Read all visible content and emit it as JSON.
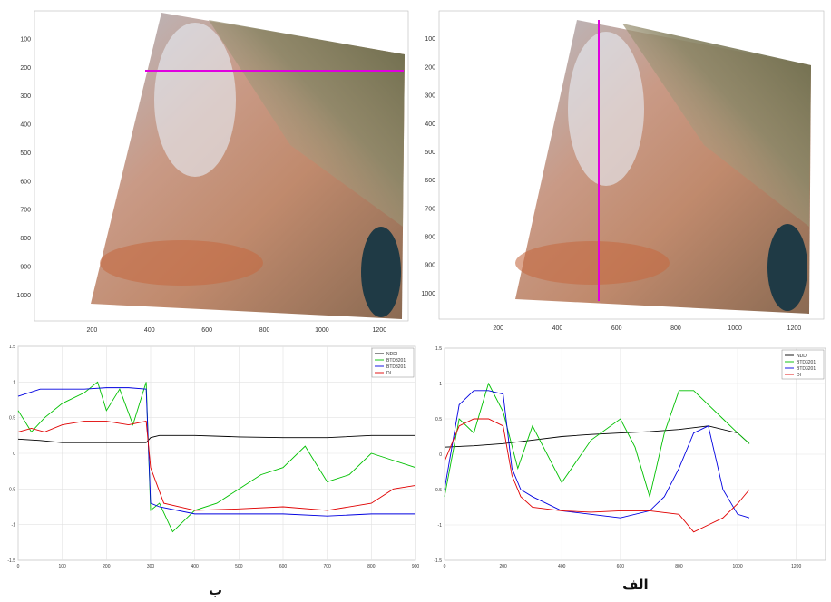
{
  "captions": {
    "right": "الف",
    "left": "ب"
  },
  "colors": {
    "ndd": "#000000",
    "btd2": "#00c000",
    "btd1": "#0000e0",
    "di": "#e00000",
    "profile": "#e000e0"
  },
  "chart_data": [
    {
      "type": "image",
      "panel": "top-left",
      "description": "satellite scene with horizontal profile line",
      "xticks": [
        200,
        400,
        600,
        800,
        1000,
        1200
      ],
      "yticks": [
        100,
        200,
        300,
        400,
        500,
        600,
        700,
        800,
        900,
        1000
      ],
      "xlim": [
        0,
        1300
      ],
      "ylim": [
        0,
        1090
      ],
      "profile_line": {
        "orientation": "horizontal",
        "y": 210,
        "x_range": [
          400,
          1280
        ]
      }
    },
    {
      "type": "image",
      "panel": "top-right",
      "description": "satellite scene with vertical profile line",
      "xticks": [
        200,
        400,
        600,
        800,
        1000,
        1200
      ],
      "yticks": [
        100,
        200,
        300,
        400,
        500,
        600,
        700,
        800,
        900,
        1000
      ],
      "xlim": [
        0,
        1300
      ],
      "ylim": [
        0,
        1090
      ],
      "profile_line": {
        "orientation": "vertical",
        "x": 510,
        "y_range": [
          20,
          1040
        ]
      }
    },
    {
      "type": "line",
      "panel": "bottom-left",
      "xlim": [
        0,
        900
      ],
      "ylim": [
        -1.5,
        1.5
      ],
      "xticks": [
        0,
        100,
        200,
        300,
        400,
        500,
        600,
        700,
        800,
        900
      ],
      "yticks": [
        -1.5,
        -1,
        -0.5,
        0,
        0.5,
        1,
        1.5
      ],
      "ytick_labels": [
        "-1.5",
        "-1",
        "-0.5",
        "0",
        "0.5",
        "1",
        "1.5"
      ],
      "legend": [
        "NDDI",
        "BTD3201",
        "BTD3201",
        "DI"
      ],
      "legend_position": "top-right",
      "grid": true,
      "series": [
        {
          "name": "NDDI",
          "color_key": "ndd",
          "x": [
            0,
            50,
            100,
            150,
            200,
            250,
            290,
            300,
            320,
            400,
            500,
            600,
            700,
            800,
            900
          ],
          "values": [
            0.2,
            0.18,
            0.15,
            0.15,
            0.15,
            0.15,
            0.15,
            0.22,
            0.25,
            0.25,
            0.23,
            0.22,
            0.22,
            0.25,
            0.25
          ]
        },
        {
          "name": "BTD3201",
          "color_key": "btd2",
          "x": [
            0,
            30,
            60,
            100,
            150,
            180,
            200,
            230,
            260,
            290,
            300,
            320,
            350,
            400,
            450,
            500,
            550,
            600,
            650,
            700,
            750,
            800,
            850,
            900
          ],
          "values": [
            0.6,
            0.3,
            0.5,
            0.7,
            0.85,
            1.0,
            0.6,
            0.9,
            0.4,
            1.0,
            -0.8,
            -0.7,
            -1.1,
            -0.8,
            -0.7,
            -0.5,
            -0.3,
            -0.2,
            0.1,
            -0.4,
            -0.3,
            0.0,
            -0.1,
            -0.2
          ]
        },
        {
          "name": "BTD3201",
          "color_key": "btd1",
          "x": [
            0,
            50,
            100,
            150,
            200,
            250,
            290,
            300,
            320,
            400,
            500,
            600,
            700,
            800,
            900
          ],
          "values": [
            0.8,
            0.9,
            0.9,
            0.9,
            0.92,
            0.92,
            0.9,
            -0.7,
            -0.75,
            -0.85,
            -0.85,
            -0.85,
            -0.88,
            -0.85,
            -0.85
          ]
        },
        {
          "name": "DI",
          "color_key": "di",
          "x": [
            0,
            30,
            60,
            100,
            150,
            200,
            250,
            290,
            300,
            330,
            400,
            500,
            600,
            700,
            800,
            850,
            900
          ],
          "values": [
            0.3,
            0.35,
            0.3,
            0.4,
            0.45,
            0.45,
            0.4,
            0.45,
            -0.2,
            -0.7,
            -0.8,
            -0.78,
            -0.75,
            -0.8,
            -0.7,
            -0.5,
            -0.45
          ]
        }
      ]
    },
    {
      "type": "line",
      "panel": "bottom-right",
      "xlim": [
        0,
        1300
      ],
      "ylim": [
        -1.5,
        1.5
      ],
      "xticks": [
        0,
        200,
        400,
        600,
        800,
        1000,
        1200
      ],
      "yticks": [
        -1.5,
        -1,
        -0.5,
        0,
        0.5,
        1,
        1.5
      ],
      "ytick_labels": [
        "-1.5",
        "-1",
        "-0.5",
        "0",
        "0.5",
        "1",
        "1.5"
      ],
      "legend": [
        "NDDI",
        "BTD3201",
        "BTD3201",
        "DI"
      ],
      "legend_position": "top-right",
      "grid": true,
      "series": [
        {
          "name": "NDDI",
          "color_key": "ndd",
          "x": [
            0,
            100,
            200,
            300,
            400,
            500,
            600,
            700,
            800,
            900,
            1000,
            1040
          ],
          "values": [
            0.1,
            0.12,
            0.15,
            0.2,
            0.25,
            0.28,
            0.3,
            0.32,
            0.35,
            0.4,
            0.3,
            0.15
          ]
        },
        {
          "name": "BTD3201",
          "color_key": "btd2",
          "x": [
            0,
            50,
            100,
            150,
            200,
            250,
            300,
            400,
            500,
            600,
            650,
            700,
            750,
            800,
            850,
            900,
            950,
            1000,
            1040
          ],
          "values": [
            -0.6,
            0.5,
            0.3,
            1.0,
            0.6,
            -0.2,
            0.4,
            -0.4,
            0.2,
            0.5,
            0.1,
            -0.6,
            0.3,
            0.9,
            0.9,
            0.7,
            0.5,
            0.3,
            0.15
          ]
        },
        {
          "name": "BTD3201",
          "color_key": "btd1",
          "x": [
            0,
            50,
            100,
            150,
            200,
            230,
            260,
            300,
            400,
            500,
            600,
            700,
            750,
            800,
            850,
            900,
            950,
            1000,
            1040
          ],
          "values": [
            -0.5,
            0.7,
            0.9,
            0.9,
            0.85,
            -0.2,
            -0.5,
            -0.6,
            -0.8,
            -0.85,
            -0.9,
            -0.8,
            -0.6,
            -0.2,
            0.3,
            0.4,
            -0.5,
            -0.85,
            -0.9
          ]
        },
        {
          "name": "DI",
          "color_key": "di",
          "x": [
            0,
            50,
            100,
            150,
            200,
            230,
            260,
            300,
            400,
            500,
            600,
            700,
            800,
            850,
            900,
            950,
            1000,
            1040
          ],
          "values": [
            -0.1,
            0.4,
            0.5,
            0.5,
            0.4,
            -0.3,
            -0.6,
            -0.75,
            -0.8,
            -0.82,
            -0.8,
            -0.8,
            -0.85,
            -1.1,
            -1.0,
            -0.9,
            -0.7,
            -0.5
          ]
        }
      ]
    }
  ]
}
